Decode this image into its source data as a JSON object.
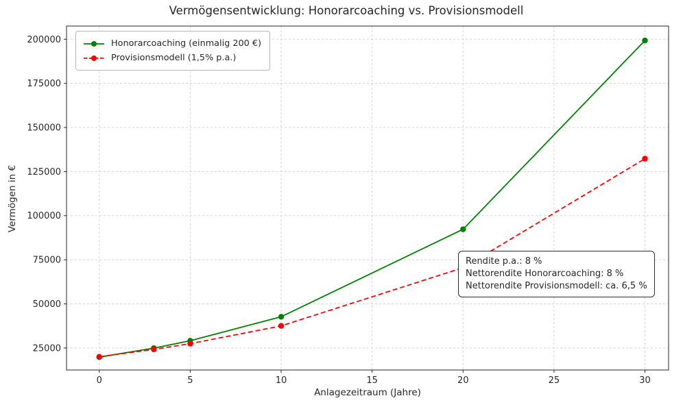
{
  "chart_data": {
    "type": "line",
    "title": "Vermögensentwicklung: Honorarcoaching vs. Provisionsmodell",
    "xlabel": "Anlagezeitraum (Jahre)",
    "ylabel": "Vermögen in €",
    "x": [
      0,
      3,
      5,
      10,
      20,
      30
    ],
    "series": [
      {
        "name": "Honorarcoaching (einmalig 200 €)",
        "color": "#008000",
        "style": "solid",
        "values": [
          19800,
          24900,
          29100,
          42700,
          92300,
          199300
        ]
      },
      {
        "name": "Provisionsmodell (1,5% p.a.)",
        "color": "#ff0000",
        "style": "dashed",
        "values": [
          20000,
          24200,
          27400,
          37500,
          70500,
          132300
        ]
      }
    ],
    "xlim": [
      -1.8,
      31.3
    ],
    "ylim": [
      12500,
      207500
    ],
    "xticks": [
      0,
      5,
      10,
      15,
      20,
      25,
      30
    ],
    "yticks": [
      25000,
      50000,
      75000,
      100000,
      125000,
      150000,
      175000,
      200000
    ],
    "grid": true,
    "legend_position": "top-left",
    "annotation": {
      "lines": [
        "Rendite p.a.: 8 %",
        "Nettorendite Honorarcoaching: 8 %",
        "Nettorendite Provisionsmodell: ca. 6,5 %"
      ]
    }
  }
}
